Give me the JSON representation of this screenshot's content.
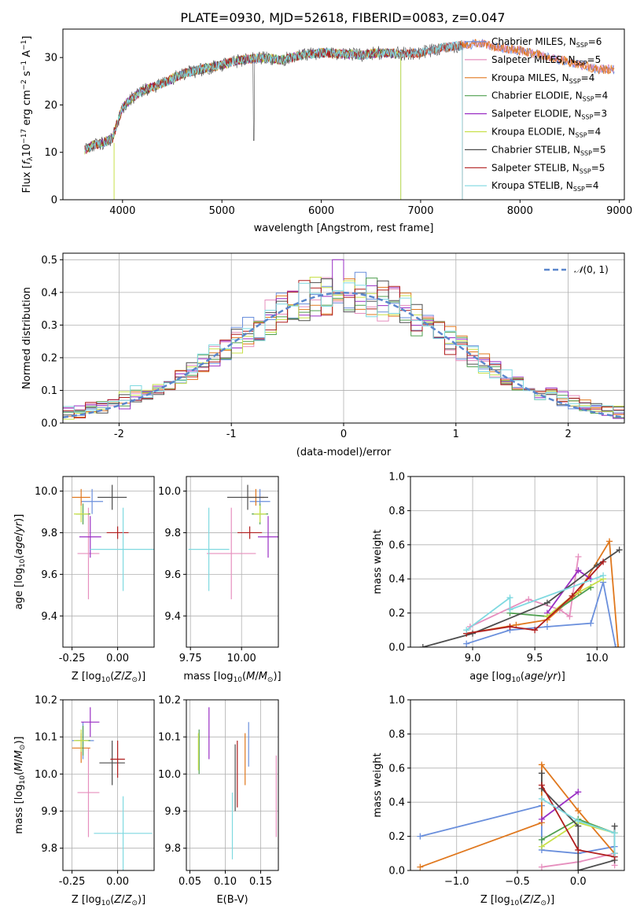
{
  "title": "PLATE=0930, MJD=52618, FIBERID=0083, z=0.047",
  "colors": {
    "Chabrier MILES": "#6a8fdc",
    "Salpeter MILES": "#e68fbe",
    "Kroupa MILES": "#e0781e",
    "Chabrier ELODIE": "#4f9f4f",
    "Salpeter ELODIE": "#9a2fc4",
    "Kroupa ELODIE": "#c8e04a",
    "Chabrier STELIB": "#4d4d4d",
    "Salpeter STELIB": "#b01e1e",
    "Kroupa STELIB": "#7fd9e0",
    "normal": "#5a86cc"
  },
  "chart_data": [
    {
      "type": "line",
      "name": "spectrum",
      "xlabel": "wavelength [Angstrom, rest frame]",
      "ylabel": "Flux [f_λ10^-17 erg cm^-2 s^-1 A^-1]",
      "xlim": [
        3400,
        9050
      ],
      "ylim": [
        0,
        36
      ],
      "xticks": [
        "4000",
        "5000",
        "6000",
        "7000",
        "8000",
        "9000"
      ],
      "yticks": [
        "0",
        "10",
        "20",
        "30"
      ],
      "legend": [
        {
          "label": "Chabrier MILES, N",
          "sub": "SSP",
          "tail": "=6"
        },
        {
          "label": "Salpeter MILES, N",
          "sub": "SSP",
          "tail": "=5"
        },
        {
          "label": "Kroupa MILES, N",
          "sub": "SSP",
          "tail": "=4"
        },
        {
          "label": "Chabrier ELODIE, N",
          "sub": "SSP",
          "tail": "=4"
        },
        {
          "label": "Salpeter ELODIE, N",
          "sub": "SSP",
          "tail": "=3"
        },
        {
          "label": "Kroupa ELODIE, N",
          "sub": "SSP",
          "tail": "=4"
        },
        {
          "label": "Chabrier STELIB, N",
          "sub": "SSP",
          "tail": "=5"
        },
        {
          "label": "Salpeter STELIB, N",
          "sub": "SSP",
          "tail": "=5"
        },
        {
          "label": "Kroupa STELIB, N",
          "sub": "SSP",
          "tail": "=4"
        }
      ],
      "legend_position": "upper-right",
      "continuum": [
        [
          3620,
          10.5
        ],
        [
          3700,
          11.5
        ],
        [
          3800,
          12.0
        ],
        [
          3900,
          13.0
        ],
        [
          4000,
          19.5
        ],
        [
          4100,
          21.5
        ],
        [
          4200,
          23.0
        ],
        [
          4400,
          24.5
        ],
        [
          4600,
          26.5
        ],
        [
          4800,
          27.5
        ],
        [
          5000,
          28.5
        ],
        [
          5200,
          29.5
        ],
        [
          5400,
          30.0
        ],
        [
          5600,
          29.5
        ],
        [
          5800,
          30.5
        ],
        [
          6000,
          31.0
        ],
        [
          6200,
          30.8
        ],
        [
          6400,
          30.5
        ],
        [
          6600,
          31.0
        ],
        [
          6800,
          30.8
        ],
        [
          7000,
          31.0
        ],
        [
          7200,
          32.0
        ],
        [
          7400,
          32.5
        ],
        [
          7600,
          33.0
        ],
        [
          7800,
          32.0
        ],
        [
          8000,
          31.5
        ],
        [
          8200,
          30.5
        ],
        [
          8400,
          29.5
        ],
        [
          8600,
          28.5
        ],
        [
          8800,
          27.5
        ]
      ],
      "model_end": {
        "STELIB": 7420,
        "ELODIE": 6800,
        "MILES": 8950
      }
    },
    {
      "type": "step",
      "name": "residual-histogram",
      "xlabel": "(data-model)/error",
      "ylabel": "Normed distribution",
      "xlim": [
        -2.5,
        2.5
      ],
      "ylim": [
        0,
        0.52
      ],
      "xticks": [
        -2,
        -1,
        0,
        1,
        2
      ],
      "yticks": [
        0.0,
        0.1,
        0.2,
        0.3,
        0.4,
        0.5
      ],
      "bin_width": 0.1,
      "legend": "N(0, 1)",
      "legend_position": "upper-right",
      "curve": "normal(0,1)",
      "spike": {
        "x": -0.05,
        "y": 0.5
      }
    },
    {
      "type": "errorbar",
      "name": "age-vs-Z",
      "xlabel": "Z [log10(Z/Z⊙)]",
      "ylabel": "age [log10(age/yr)]",
      "xlim": [
        -0.3,
        0.2
      ],
      "ylim": [
        9.25,
        10.07
      ],
      "xticks": [
        -0.25,
        0.0
      ],
      "yticks": [
        9.4,
        9.6,
        9.8,
        10.0
      ],
      "points": [
        {
          "model": "Chabrier MILES",
          "x": -0.14,
          "xerr": 0.06,
          "y": 9.95,
          "yerr": 0.06
        },
        {
          "model": "Salpeter MILES",
          "x": -0.16,
          "xerr": 0.06,
          "y": 9.7,
          "yerr": 0.22
        },
        {
          "model": "Kroupa MILES",
          "x": -0.2,
          "xerr": 0.05,
          "y": 9.97,
          "yerr": 0.04
        },
        {
          "model": "Chabrier ELODIE",
          "x": -0.19,
          "xerr": 0.04,
          "y": 9.89,
          "yerr": 0.05
        },
        {
          "model": "Salpeter ELODIE",
          "x": -0.15,
          "xerr": 0.06,
          "y": 9.78,
          "yerr": 0.1
        },
        {
          "model": "Kroupa ELODIE",
          "x": -0.2,
          "xerr": 0.04,
          "y": 9.89,
          "yerr": 0.04
        },
        {
          "model": "Chabrier STELIB",
          "x": -0.03,
          "xerr": 0.08,
          "y": 9.97,
          "yerr": 0.06
        },
        {
          "model": "Salpeter STELIB",
          "x": 0.0,
          "xerr": 0.06,
          "y": 9.8,
          "yerr": 0.03
        },
        {
          "model": "Kroupa STELIB",
          "x": 0.03,
          "xerr": 0.18,
          "y": 9.72,
          "yerr": 0.2
        }
      ]
    },
    {
      "type": "errorbar",
      "name": "age-vs-mass",
      "xlabel": "mass [log10(M/M⊙)]",
      "ylabel": "",
      "xlim": [
        9.73,
        10.18
      ],
      "ylim": [
        9.25,
        10.07
      ],
      "xticks": [
        9.75,
        10.0
      ],
      "yticks": [
        9.4,
        9.6,
        9.8,
        10.0
      ],
      "points": [
        {
          "model": "Chabrier MILES",
          "x": 10.09,
          "xerr": 0.05,
          "y": 9.95,
          "yerr": 0.06
        },
        {
          "model": "Salpeter MILES",
          "x": 9.95,
          "xerr": 0.12,
          "y": 9.7,
          "yerr": 0.22
        },
        {
          "model": "Kroupa MILES",
          "x": 10.07,
          "xerr": 0.04,
          "y": 9.97,
          "yerr": 0.04
        },
        {
          "model": "Chabrier ELODIE",
          "x": 10.09,
          "xerr": 0.04,
          "y": 9.89,
          "yerr": 0.05
        },
        {
          "model": "Salpeter ELODIE",
          "x": 10.13,
          "xerr": 0.05,
          "y": 9.78,
          "yerr": 0.1
        },
        {
          "model": "Kroupa ELODIE",
          "x": 10.09,
          "xerr": 0.03,
          "y": 9.89,
          "yerr": 0.04
        },
        {
          "model": "Chabrier STELIB",
          "x": 10.03,
          "xerr": 0.1,
          "y": 9.97,
          "yerr": 0.06
        },
        {
          "model": "Salpeter STELIB",
          "x": 10.04,
          "xerr": 0.06,
          "y": 9.8,
          "yerr": 0.03
        },
        {
          "model": "Kroupa STELIB",
          "x": 9.84,
          "xerr": 0.1,
          "y": 9.72,
          "yerr": 0.2
        }
      ]
    },
    {
      "type": "line",
      "name": "mass-weight-vs-age",
      "xlabel": "age [log10(age/yr)]",
      "ylabel": "mass weight",
      "xlim": [
        8.5,
        10.22
      ],
      "ylim": [
        0,
        1
      ],
      "xticks": [
        9.0,
        9.5,
        10.0
      ],
      "yticks": [
        0.0,
        0.2,
        0.4,
        0.6,
        0.8,
        1.0
      ],
      "series": [
        {
          "model": "Chabrier MILES",
          "x": [
            8.95,
            9.3,
            9.6,
            9.95,
            10.05,
            10.15
          ],
          "y": [
            0.02,
            0.1,
            0.12,
            0.14,
            0.38,
            0.0
          ]
        },
        {
          "model": "Salpeter MILES",
          "x": [
            8.98,
            9.45,
            9.7,
            9.78,
            9.85
          ],
          "y": [
            0.12,
            0.28,
            0.22,
            0.18,
            0.53
          ]
        },
        {
          "model": "Kroupa MILES",
          "x": [
            8.95,
            9.35,
            9.6,
            9.85,
            10.1,
            10.17
          ],
          "y": [
            0.08,
            0.13,
            0.16,
            0.32,
            0.62,
            0.0
          ]
        },
        {
          "model": "Chabrier ELODIE",
          "x": [
            9.3,
            9.6,
            9.95
          ],
          "y": [
            0.2,
            0.18,
            0.35
          ]
        },
        {
          "model": "Salpeter ELODIE",
          "x": [
            9.6,
            9.85,
            9.95
          ],
          "y": [
            0.2,
            0.45,
            0.4
          ]
        },
        {
          "model": "Kroupa ELODIE",
          "x": [
            9.6,
            9.8,
            10.05
          ],
          "y": [
            0.18,
            0.3,
            0.4
          ]
        },
        {
          "model": "Chabrier STELIB",
          "x": [
            8.6,
            9.0,
            9.6,
            10.0,
            10.18
          ],
          "y": [
            0.0,
            0.08,
            0.26,
            0.48,
            0.57
          ]
        },
        {
          "model": "Salpeter STELIB",
          "x": [
            8.95,
            9.3,
            9.5,
            9.8,
            10.05
          ],
          "y": [
            0.08,
            0.12,
            0.1,
            0.3,
            0.5
          ]
        },
        {
          "model": "Kroupa STELIB",
          "x": [
            8.95,
            9.3,
            9.3,
            10.05
          ],
          "y": [
            0.1,
            0.29,
            0.22,
            0.42
          ]
        }
      ]
    },
    {
      "type": "errorbar",
      "name": "mass-vs-Z",
      "xlabel": "Z [log10(Z/Z⊙)]",
      "ylabel": "mass [log10(M/M⊙)]",
      "xlim": [
        -0.3,
        0.2
      ],
      "ylim": [
        9.74,
        10.2
      ],
      "xticks": [
        -0.25,
        0.0
      ],
      "yticks": [
        9.8,
        9.9,
        10.0,
        10.1,
        10.2
      ],
      "points": [
        {
          "model": "Chabrier MILES",
          "x": -0.19,
          "xerr": 0.06,
          "y": 10.09,
          "yerr": 0.05
        },
        {
          "model": "Salpeter MILES",
          "x": -0.16,
          "xerr": 0.06,
          "y": 9.95,
          "yerr": 0.12
        },
        {
          "model": "Kroupa MILES",
          "x": -0.2,
          "xerr": 0.05,
          "y": 10.07,
          "yerr": 0.04
        },
        {
          "model": "Chabrier ELODIE",
          "x": -0.19,
          "xerr": 0.04,
          "y": 10.09,
          "yerr": 0.04
        },
        {
          "model": "Salpeter ELODIE",
          "x": -0.15,
          "xerr": 0.05,
          "y": 10.14,
          "yerr": 0.04
        },
        {
          "model": "Kroupa ELODIE",
          "x": -0.2,
          "xerr": 0.04,
          "y": 10.09,
          "yerr": 0.03
        },
        {
          "model": "Chabrier STELIB",
          "x": -0.03,
          "xerr": 0.07,
          "y": 10.03,
          "yerr": 0.06
        },
        {
          "model": "Salpeter STELIB",
          "x": 0.0,
          "xerr": 0.04,
          "y": 10.04,
          "yerr": 0.05
        },
        {
          "model": "Kroupa STELIB",
          "x": 0.03,
          "xerr": 0.16,
          "y": 9.84,
          "yerr": 0.1
        }
      ]
    },
    {
      "type": "errorbar",
      "name": "mass-vs-EBV",
      "xlabel": "E(B-V)",
      "ylabel": "",
      "xlim": [
        0.045,
        0.175
      ],
      "ylim": [
        9.74,
        10.2
      ],
      "xticks": [
        0.05,
        0.1,
        0.15
      ],
      "yticks": [
        9.8,
        9.9,
        10.0,
        10.1,
        10.2
      ],
      "points": [
        {
          "model": "Chabrier MILES",
          "x": 0.133,
          "xerr": 0.0,
          "y": 10.08,
          "yerr": 0.06
        },
        {
          "model": "Salpeter MILES",
          "x": 0.172,
          "xerr": 0.0,
          "y": 9.94,
          "yerr": 0.11
        },
        {
          "model": "Kroupa MILES",
          "x": 0.128,
          "xerr": 0.0,
          "y": 10.04,
          "yerr": 0.07
        },
        {
          "model": "Chabrier ELODIE",
          "x": 0.063,
          "xerr": 0.0,
          "y": 10.06,
          "yerr": 0.06
        },
        {
          "model": "Salpeter ELODIE",
          "x": 0.077,
          "xerr": 0.0,
          "y": 10.11,
          "yerr": 0.07
        },
        {
          "model": "Kroupa ELODIE",
          "x": 0.062,
          "xerr": 0.0,
          "y": 10.06,
          "yerr": 0.05
        },
        {
          "model": "Chabrier STELIB",
          "x": 0.114,
          "xerr": 0.0,
          "y": 9.99,
          "yerr": 0.09
        },
        {
          "model": "Salpeter STELIB",
          "x": 0.117,
          "xerr": 0.0,
          "y": 10.0,
          "yerr": 0.09
        },
        {
          "model": "Kroupa STELIB",
          "x": 0.11,
          "xerr": 0.0,
          "y": 9.86,
          "yerr": 0.09
        }
      ]
    },
    {
      "type": "line",
      "name": "mass-weight-vs-Z",
      "xlabel": "Z [log10(Z/Z⊙)]",
      "ylabel": "mass weight",
      "xlim": [
        -1.38,
        0.38
      ],
      "ylim": [
        0,
        1
      ],
      "xticks": [
        -1.0,
        -0.5,
        0.0
      ],
      "yticks": [
        0.0,
        0.2,
        0.4,
        0.6,
        0.8,
        1.0
      ],
      "series": [
        {
          "model": "Chabrier MILES",
          "x": [
            -1.3,
            -0.3,
            -0.3,
            0.0,
            0.3,
            0.3
          ],
          "y": [
            0.2,
            0.38,
            0.12,
            0.1,
            0.14,
            0.08
          ]
        },
        {
          "model": "Salpeter MILES",
          "x": [
            -0.3,
            0.0,
            0.3,
            0.3
          ],
          "y": [
            0.02,
            0.05,
            0.1,
            0.03
          ]
        },
        {
          "model": "Kroupa MILES",
          "x": [
            -1.3,
            -0.3,
            -0.3,
            0.0,
            0.3
          ],
          "y": [
            0.02,
            0.28,
            0.62,
            0.35,
            0.1
          ]
        },
        {
          "model": "Chabrier ELODIE",
          "x": [
            -0.3,
            0.0,
            0.3
          ],
          "y": [
            0.18,
            0.3,
            0.22
          ]
        },
        {
          "model": "Salpeter ELODIE",
          "x": [
            -0.3,
            0.0
          ],
          "y": [
            0.3,
            0.46
          ]
        },
        {
          "model": "Kroupa ELODIE",
          "x": [
            -0.3,
            0.0,
            0.3
          ],
          "y": [
            0.14,
            0.28,
            0.22
          ]
        },
        {
          "model": "Chabrier STELIB",
          "x": [
            -0.3,
            -0.3,
            0.0,
            0.0,
            0.3,
            0.3
          ],
          "y": [
            0.57,
            0.48,
            0.26,
            0.0,
            0.06,
            0.26
          ]
        },
        {
          "model": "Salpeter STELIB",
          "x": [
            -0.3,
            0.0,
            0.3,
            0.3
          ],
          "y": [
            0.5,
            0.12,
            0.08,
            0.1
          ]
        },
        {
          "model": "Kroupa STELIB",
          "x": [
            -0.3,
            0.0,
            0.3,
            0.3
          ],
          "y": [
            0.42,
            0.29,
            0.22,
            0.1
          ]
        }
      ]
    }
  ]
}
